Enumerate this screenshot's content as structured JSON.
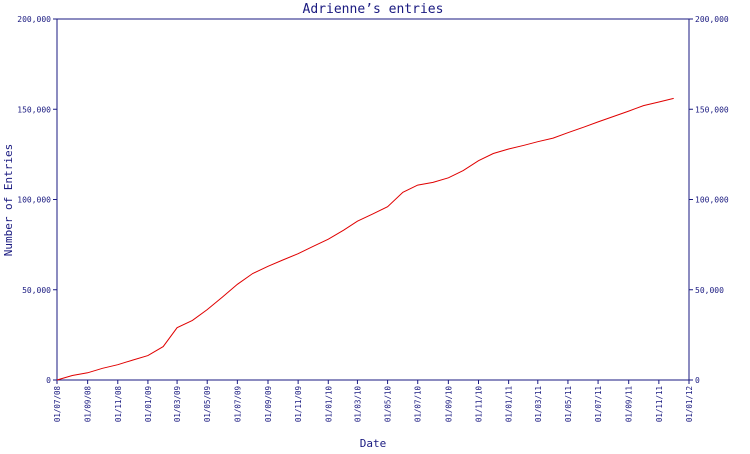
{
  "chart_data": {
    "type": "line",
    "title": "Adrienne’s entries",
    "xlabel": "Date",
    "ylabel": "Number of Entries",
    "ylim": [
      0,
      200000
    ],
    "xlim": [
      "2008-07-01",
      "2012-01-01"
    ],
    "grid": false,
    "y_ticks": [
      0,
      50000,
      100000,
      150000,
      200000
    ],
    "y_tick_labels": [
      "0",
      "50,000",
      "100,000",
      "150,000",
      "200,000"
    ],
    "y_axis_sides": [
      "left",
      "right"
    ],
    "x_ticks": [
      "2008-07-01",
      "2008-09-01",
      "2008-11-01",
      "2009-01-01",
      "2009-03-01",
      "2009-05-01",
      "2009-07-01",
      "2009-09-01",
      "2009-11-01",
      "2010-01-01",
      "2010-03-01",
      "2010-05-01",
      "2010-07-01",
      "2010-09-01",
      "2010-11-01",
      "2011-01-01",
      "2011-03-01",
      "2011-05-01",
      "2011-07-01",
      "2011-09-01",
      "2011-11-01",
      "2012-01-01"
    ],
    "x_tick_labels": [
      "01/07/08",
      "01/09/08",
      "01/11/08",
      "01/01/09",
      "01/03/09",
      "01/05/09",
      "01/07/09",
      "01/09/09",
      "01/11/09",
      "01/01/10",
      "01/03/10",
      "01/05/10",
      "01/07/10",
      "01/09/10",
      "01/11/10",
      "01/01/11",
      "01/03/11",
      "01/05/11",
      "01/07/11",
      "01/09/11",
      "01/11/11",
      "01/01/12"
    ],
    "series": [
      {
        "color": "#e00000",
        "points": [
          [
            "2008-07-01",
            0
          ],
          [
            "2008-08-01",
            2500
          ],
          [
            "2008-09-01",
            4000
          ],
          [
            "2008-10-01",
            6500
          ],
          [
            "2008-11-01",
            8500
          ],
          [
            "2008-12-01",
            11000
          ],
          [
            "2009-01-01",
            13500
          ],
          [
            "2009-02-01",
            18500
          ],
          [
            "2009-03-01",
            29000
          ],
          [
            "2009-04-01",
            33000
          ],
          [
            "2009-05-01",
            39000
          ],
          [
            "2009-06-01",
            46000
          ],
          [
            "2009-07-01",
            53000
          ],
          [
            "2009-08-01",
            59000
          ],
          [
            "2009-09-01",
            63000
          ],
          [
            "2009-10-01",
            66500
          ],
          [
            "2009-11-01",
            70000
          ],
          [
            "2009-12-01",
            74000
          ],
          [
            "2010-01-01",
            78000
          ],
          [
            "2010-02-01",
            83000
          ],
          [
            "2010-03-01",
            88000
          ],
          [
            "2010-04-01",
            92000
          ],
          [
            "2010-05-01",
            96000
          ],
          [
            "2010-06-01",
            104000
          ],
          [
            "2010-07-01",
            108000
          ],
          [
            "2010-08-01",
            109500
          ],
          [
            "2010-09-01",
            112000
          ],
          [
            "2010-10-01",
            116000
          ],
          [
            "2010-11-01",
            121500
          ],
          [
            "2010-12-01",
            125500
          ],
          [
            "2011-01-01",
            128000
          ],
          [
            "2011-02-01",
            130000
          ],
          [
            "2011-03-01",
            132000
          ],
          [
            "2011-04-01",
            134000
          ],
          [
            "2011-05-01",
            137000
          ],
          [
            "2011-06-01",
            140000
          ],
          [
            "2011-07-01",
            143000
          ],
          [
            "2011-08-01",
            146000
          ],
          [
            "2011-09-01",
            149000
          ],
          [
            "2011-10-01",
            152000
          ],
          [
            "2011-11-01",
            154000
          ],
          [
            "2011-12-01",
            156000
          ]
        ]
      }
    ]
  }
}
